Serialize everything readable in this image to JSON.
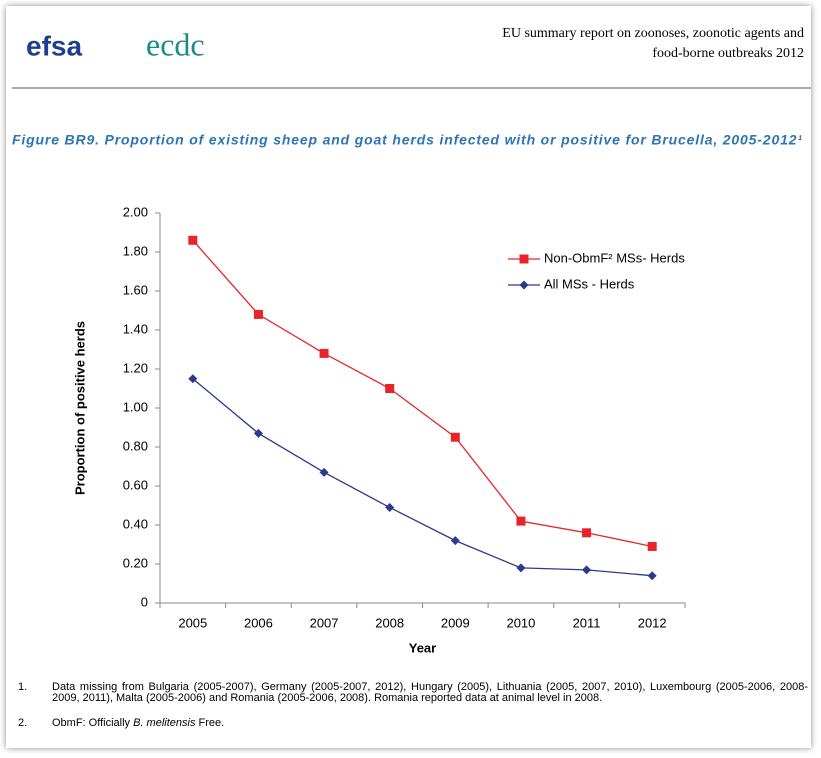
{
  "header": {
    "logos": [
      "efsa",
      "ecdc"
    ],
    "lines": [
      "EU summary report on zoonoses, zoonotic agents and",
      "food-borne outbreaks 2012"
    ]
  },
  "figure": {
    "caption": "Figure BR9. Proportion of existing sheep and goat herds infected with or positive for Brucella, 2005-2012¹"
  },
  "chart_data": {
    "type": "line",
    "ylabel": "Proportion of positive herds",
    "xlabel": "Year",
    "categories": [
      "2005",
      "2006",
      "2007",
      "2008",
      "2009",
      "2010",
      "2011",
      "2012"
    ],
    "series": [
      {
        "name": "Non-ObmF² MSs- Herds",
        "color": "#e8242b",
        "marker": "square",
        "values": [
          1.86,
          1.48,
          1.28,
          1.1,
          0.85,
          0.42,
          0.36,
          0.29
        ]
      },
      {
        "name": "All MSs - Herds",
        "color": "#2b3a8c",
        "marker": "diamond",
        "values": [
          1.15,
          0.87,
          0.67,
          0.49,
          0.32,
          0.18,
          0.17,
          0.14
        ]
      }
    ],
    "ylim": [
      0,
      2
    ],
    "yticks": [
      0,
      {
        "value": 0.2,
        "label": "0.20"
      },
      {
        "value": 0.4,
        "label": "0.40"
      },
      {
        "value": 0.6,
        "label": "0.60"
      },
      {
        "value": 0.8,
        "label": "0.80"
      },
      {
        "value": 1,
        "label": "1.00"
      },
      {
        "value": 1.2,
        "label": "1.20"
      },
      {
        "value": 1.4,
        "label": "1.40"
      },
      {
        "value": 1.6,
        "label": "1.60"
      },
      {
        "value": 1.8,
        "label": "1.80"
      },
      {
        "value": 2,
        "label": "2.00"
      }
    ],
    "grid": false,
    "legend": "upper right"
  },
  "footnotes": [
    {
      "number": "1.",
      "parts": [
        "Data missing from Bulgaria (2005-2007), Germany (2005-2007, 2012), Hungary (2005), Lithuania (2005, 2007, 2010), Luxembourg (2005-2006, 2008-2009, 2011), Malta (2005-2006) and Romania (2005-2006, 2008). Romania reported data at animal level in 2008."
      ]
    },
    {
      "number": "2.",
      "parts": [
        "ObmF: Officially ",
        "B. melitensis",
        " Free."
      ]
    }
  ]
}
